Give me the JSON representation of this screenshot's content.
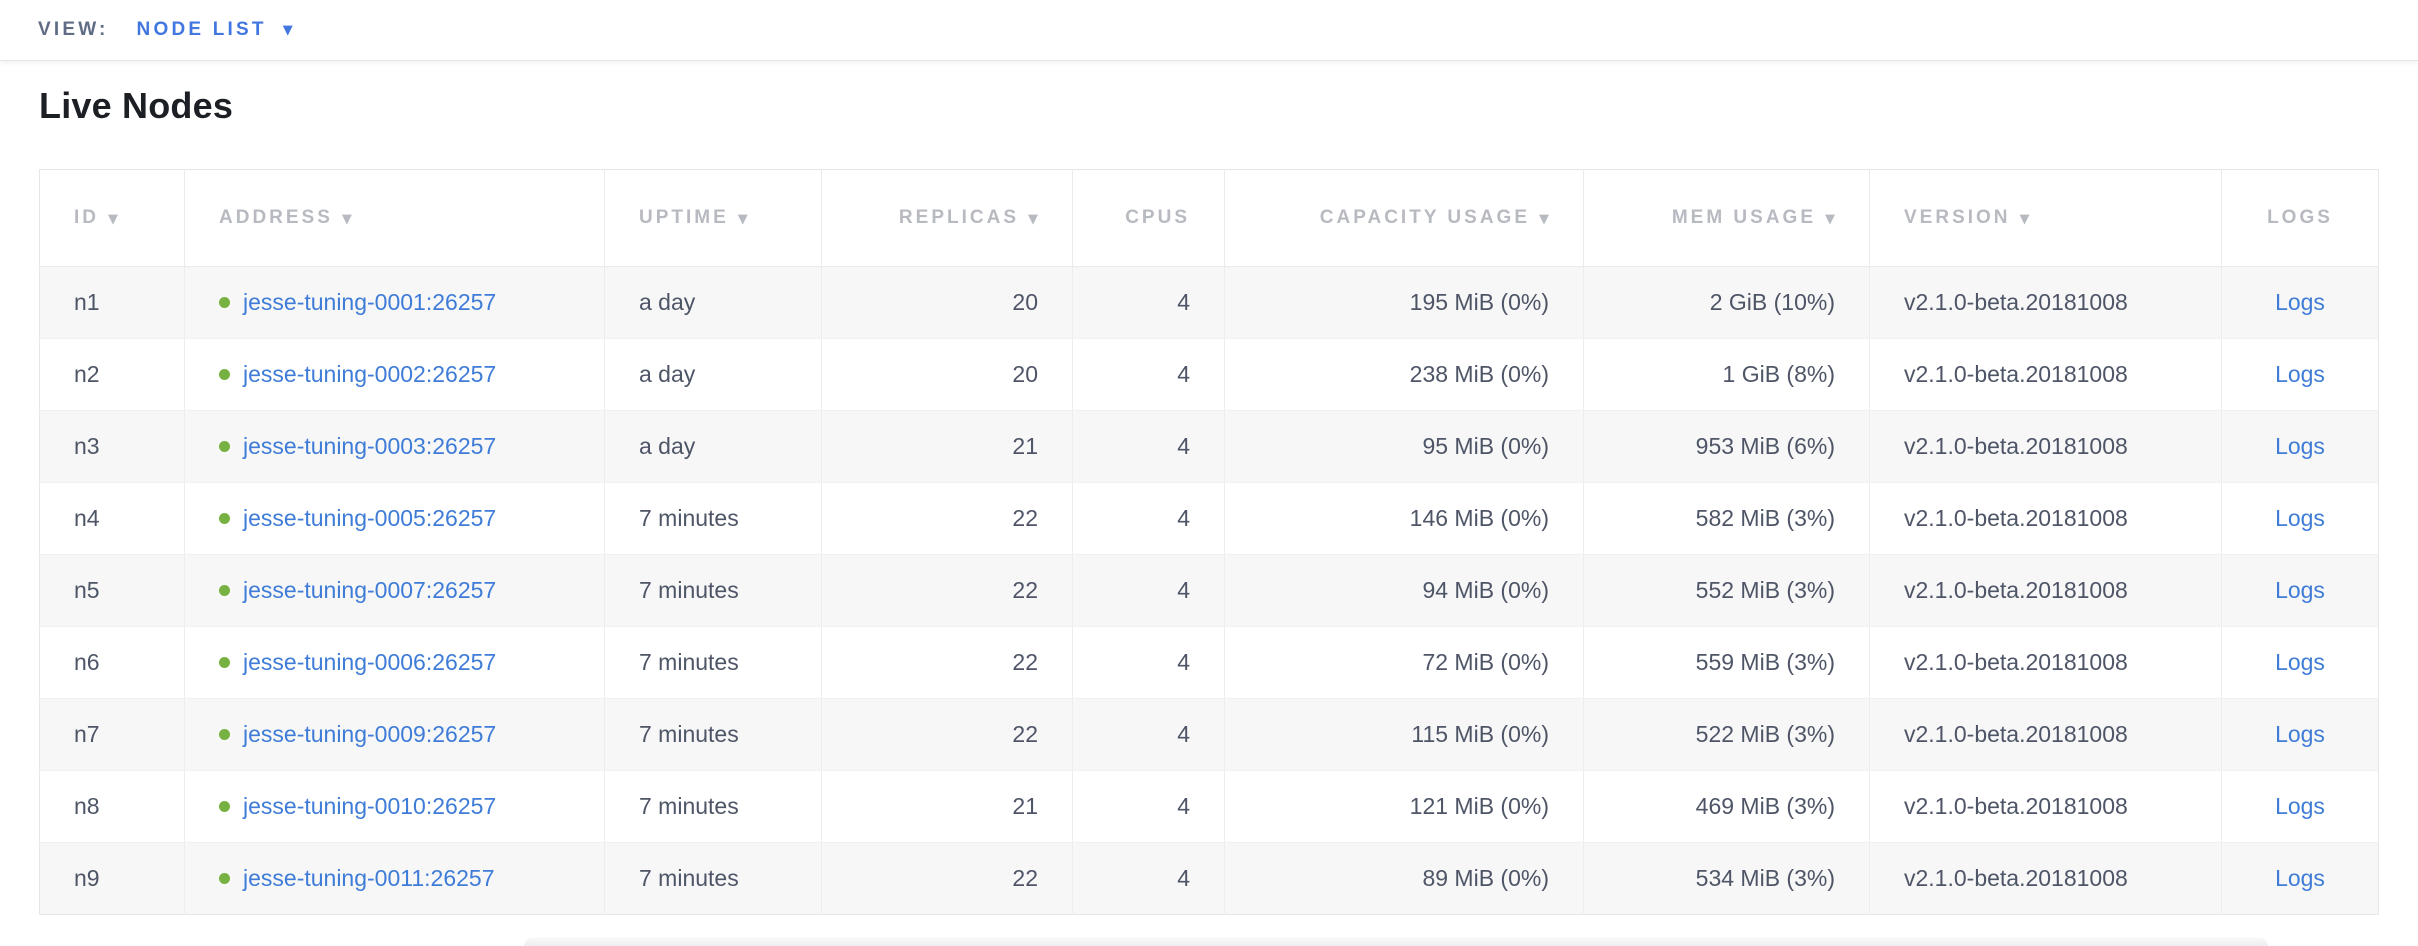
{
  "view_bar": {
    "label": "VIEW:",
    "selected": "NODE LIST"
  },
  "page": {
    "title": "Live Nodes"
  },
  "icons": {
    "sort_descending": "▼",
    "dropdown_caret": "▼"
  },
  "colors": {
    "accent_blue": "#4277e0",
    "link_blue": "#3e7cd7",
    "status_live_green": "#77b142",
    "header_gray": "#b8bac1",
    "body_text": "#4d5566",
    "view_label_gray": "#606c85",
    "row_stripe": "#f7f7f8"
  },
  "table": {
    "columns": [
      {
        "key": "id",
        "label": "ID",
        "sortable": true,
        "align": "left"
      },
      {
        "key": "address",
        "label": "ADDRESS",
        "sortable": true,
        "align": "left"
      },
      {
        "key": "uptime",
        "label": "UPTIME",
        "sortable": true,
        "align": "left"
      },
      {
        "key": "replicas",
        "label": "REPLICAS",
        "sortable": true,
        "align": "right"
      },
      {
        "key": "cpus",
        "label": "CPUS",
        "sortable": false,
        "align": "right"
      },
      {
        "key": "capacity",
        "label": "CAPACITY USAGE",
        "sortable": true,
        "align": "right"
      },
      {
        "key": "mem",
        "label": "MEM USAGE",
        "sortable": true,
        "align": "right"
      },
      {
        "key": "version",
        "label": "VERSION",
        "sortable": true,
        "align": "left"
      },
      {
        "key": "logs",
        "label": "LOGS",
        "sortable": false,
        "align": "center"
      }
    ],
    "rows": [
      {
        "id": "n1",
        "status": "live",
        "address": "jesse-tuning-0001:26257",
        "uptime": "a day",
        "replicas": "20",
        "cpus": "4",
        "capacity": "195 MiB (0%)",
        "mem": "2 GiB (10%)",
        "version": "v2.1.0-beta.20181008",
        "logs": "Logs"
      },
      {
        "id": "n2",
        "status": "live",
        "address": "jesse-tuning-0002:26257",
        "uptime": "a day",
        "replicas": "20",
        "cpus": "4",
        "capacity": "238 MiB (0%)",
        "mem": "1 GiB (8%)",
        "version": "v2.1.0-beta.20181008",
        "logs": "Logs"
      },
      {
        "id": "n3",
        "status": "live",
        "address": "jesse-tuning-0003:26257",
        "uptime": "a day",
        "replicas": "21",
        "cpus": "4",
        "capacity": "95 MiB (0%)",
        "mem": "953 MiB (6%)",
        "version": "v2.1.0-beta.20181008",
        "logs": "Logs"
      },
      {
        "id": "n4",
        "status": "live",
        "address": "jesse-tuning-0005:26257",
        "uptime": "7 minutes",
        "replicas": "22",
        "cpus": "4",
        "capacity": "146 MiB (0%)",
        "mem": "582 MiB (3%)",
        "version": "v2.1.0-beta.20181008",
        "logs": "Logs"
      },
      {
        "id": "n5",
        "status": "live",
        "address": "jesse-tuning-0007:26257",
        "uptime": "7 minutes",
        "replicas": "22",
        "cpus": "4",
        "capacity": "94 MiB (0%)",
        "mem": "552 MiB (3%)",
        "version": "v2.1.0-beta.20181008",
        "logs": "Logs"
      },
      {
        "id": "n6",
        "status": "live",
        "address": "jesse-tuning-0006:26257",
        "uptime": "7 minutes",
        "replicas": "22",
        "cpus": "4",
        "capacity": "72 MiB (0%)",
        "mem": "559 MiB (3%)",
        "version": "v2.1.0-beta.20181008",
        "logs": "Logs"
      },
      {
        "id": "n7",
        "status": "live",
        "address": "jesse-tuning-0009:26257",
        "uptime": "7 minutes",
        "replicas": "22",
        "cpus": "4",
        "capacity": "115 MiB (0%)",
        "mem": "522 MiB (3%)",
        "version": "v2.1.0-beta.20181008",
        "logs": "Logs"
      },
      {
        "id": "n8",
        "status": "live",
        "address": "jesse-tuning-0010:26257",
        "uptime": "7 minutes",
        "replicas": "21",
        "cpus": "4",
        "capacity": "121 MiB (0%)",
        "mem": "469 MiB (3%)",
        "version": "v2.1.0-beta.20181008",
        "logs": "Logs"
      },
      {
        "id": "n9",
        "status": "live",
        "address": "jesse-tuning-0011:26257",
        "uptime": "7 minutes",
        "replicas": "22",
        "cpus": "4",
        "capacity": "89 MiB (0%)",
        "mem": "534 MiB (3%)",
        "version": "v2.1.0-beta.20181008",
        "logs": "Logs"
      }
    ]
  }
}
